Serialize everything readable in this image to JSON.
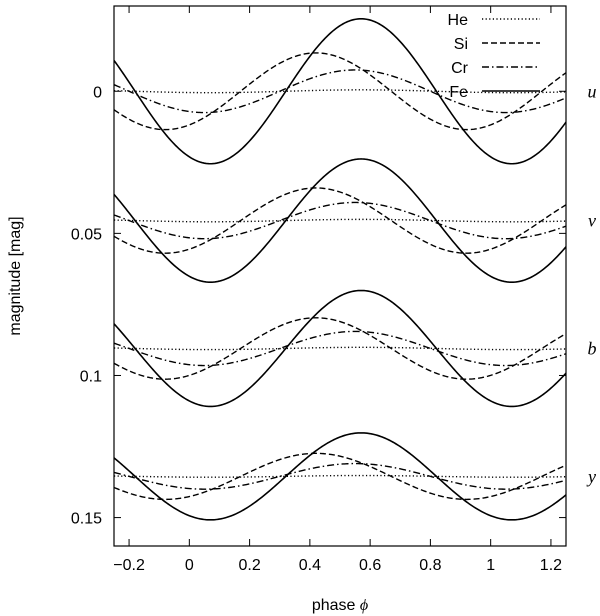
{
  "chart_data": {
    "type": "line",
    "title": "",
    "xlabel": "phase",
    "xlabel_symbol": "ϕ",
    "ylabel": "magnitude [mag]",
    "xlim": [
      -0.25,
      1.25
    ],
    "ylim": [
      0.16,
      -0.03
    ],
    "y_inverted": true,
    "grid": false,
    "legend_position": "top-right",
    "x_ticks": [
      {
        "value": -0.2,
        "label": "−0.2"
      },
      {
        "value": 0,
        "label": "0"
      },
      {
        "value": 0.2,
        "label": "0.2"
      },
      {
        "value": 0.4,
        "label": "0.4"
      },
      {
        "value": 0.6,
        "label": "0.6"
      },
      {
        "value": 0.8,
        "label": "0.8"
      },
      {
        "value": 1,
        "label": "1"
      },
      {
        "value": 1.2,
        "label": "1.2"
      }
    ],
    "y_ticks": [
      {
        "value": 0,
        "label": "0"
      },
      {
        "value": 0.05,
        "label": "0.05"
      },
      {
        "value": 0.1,
        "label": "0.1"
      },
      {
        "value": 0.15,
        "label": "0.15"
      }
    ],
    "series": [
      {
        "name": "He",
        "style": "dotted",
        "max_phase": 0.57,
        "half_amplitude": 0.0005
      },
      {
        "name": "Si",
        "style": "dashed",
        "max_phase": 0.42,
        "half_amplitude": 0.0135
      },
      {
        "name": "Cr",
        "style": "dashdot",
        "max_phase": 0.55,
        "half_amplitude": 0.0075
      },
      {
        "name": "Fe",
        "style": "solid",
        "max_phase": 0.57,
        "half_amplitude": 0.0255
      }
    ],
    "bands": [
      {
        "name": "u",
        "label": "u",
        "mean": 0.0,
        "scale": 1.0
      },
      {
        "name": "v",
        "label": "v",
        "mean": 0.0455,
        "scale": 0.85
      },
      {
        "name": "b",
        "label": "b",
        "mean": 0.0905,
        "scale": 0.8
      },
      {
        "name": "y",
        "label": "y",
        "mean": 0.1355,
        "scale": 0.6
      }
    ],
    "samples_per_curve": 300
  }
}
